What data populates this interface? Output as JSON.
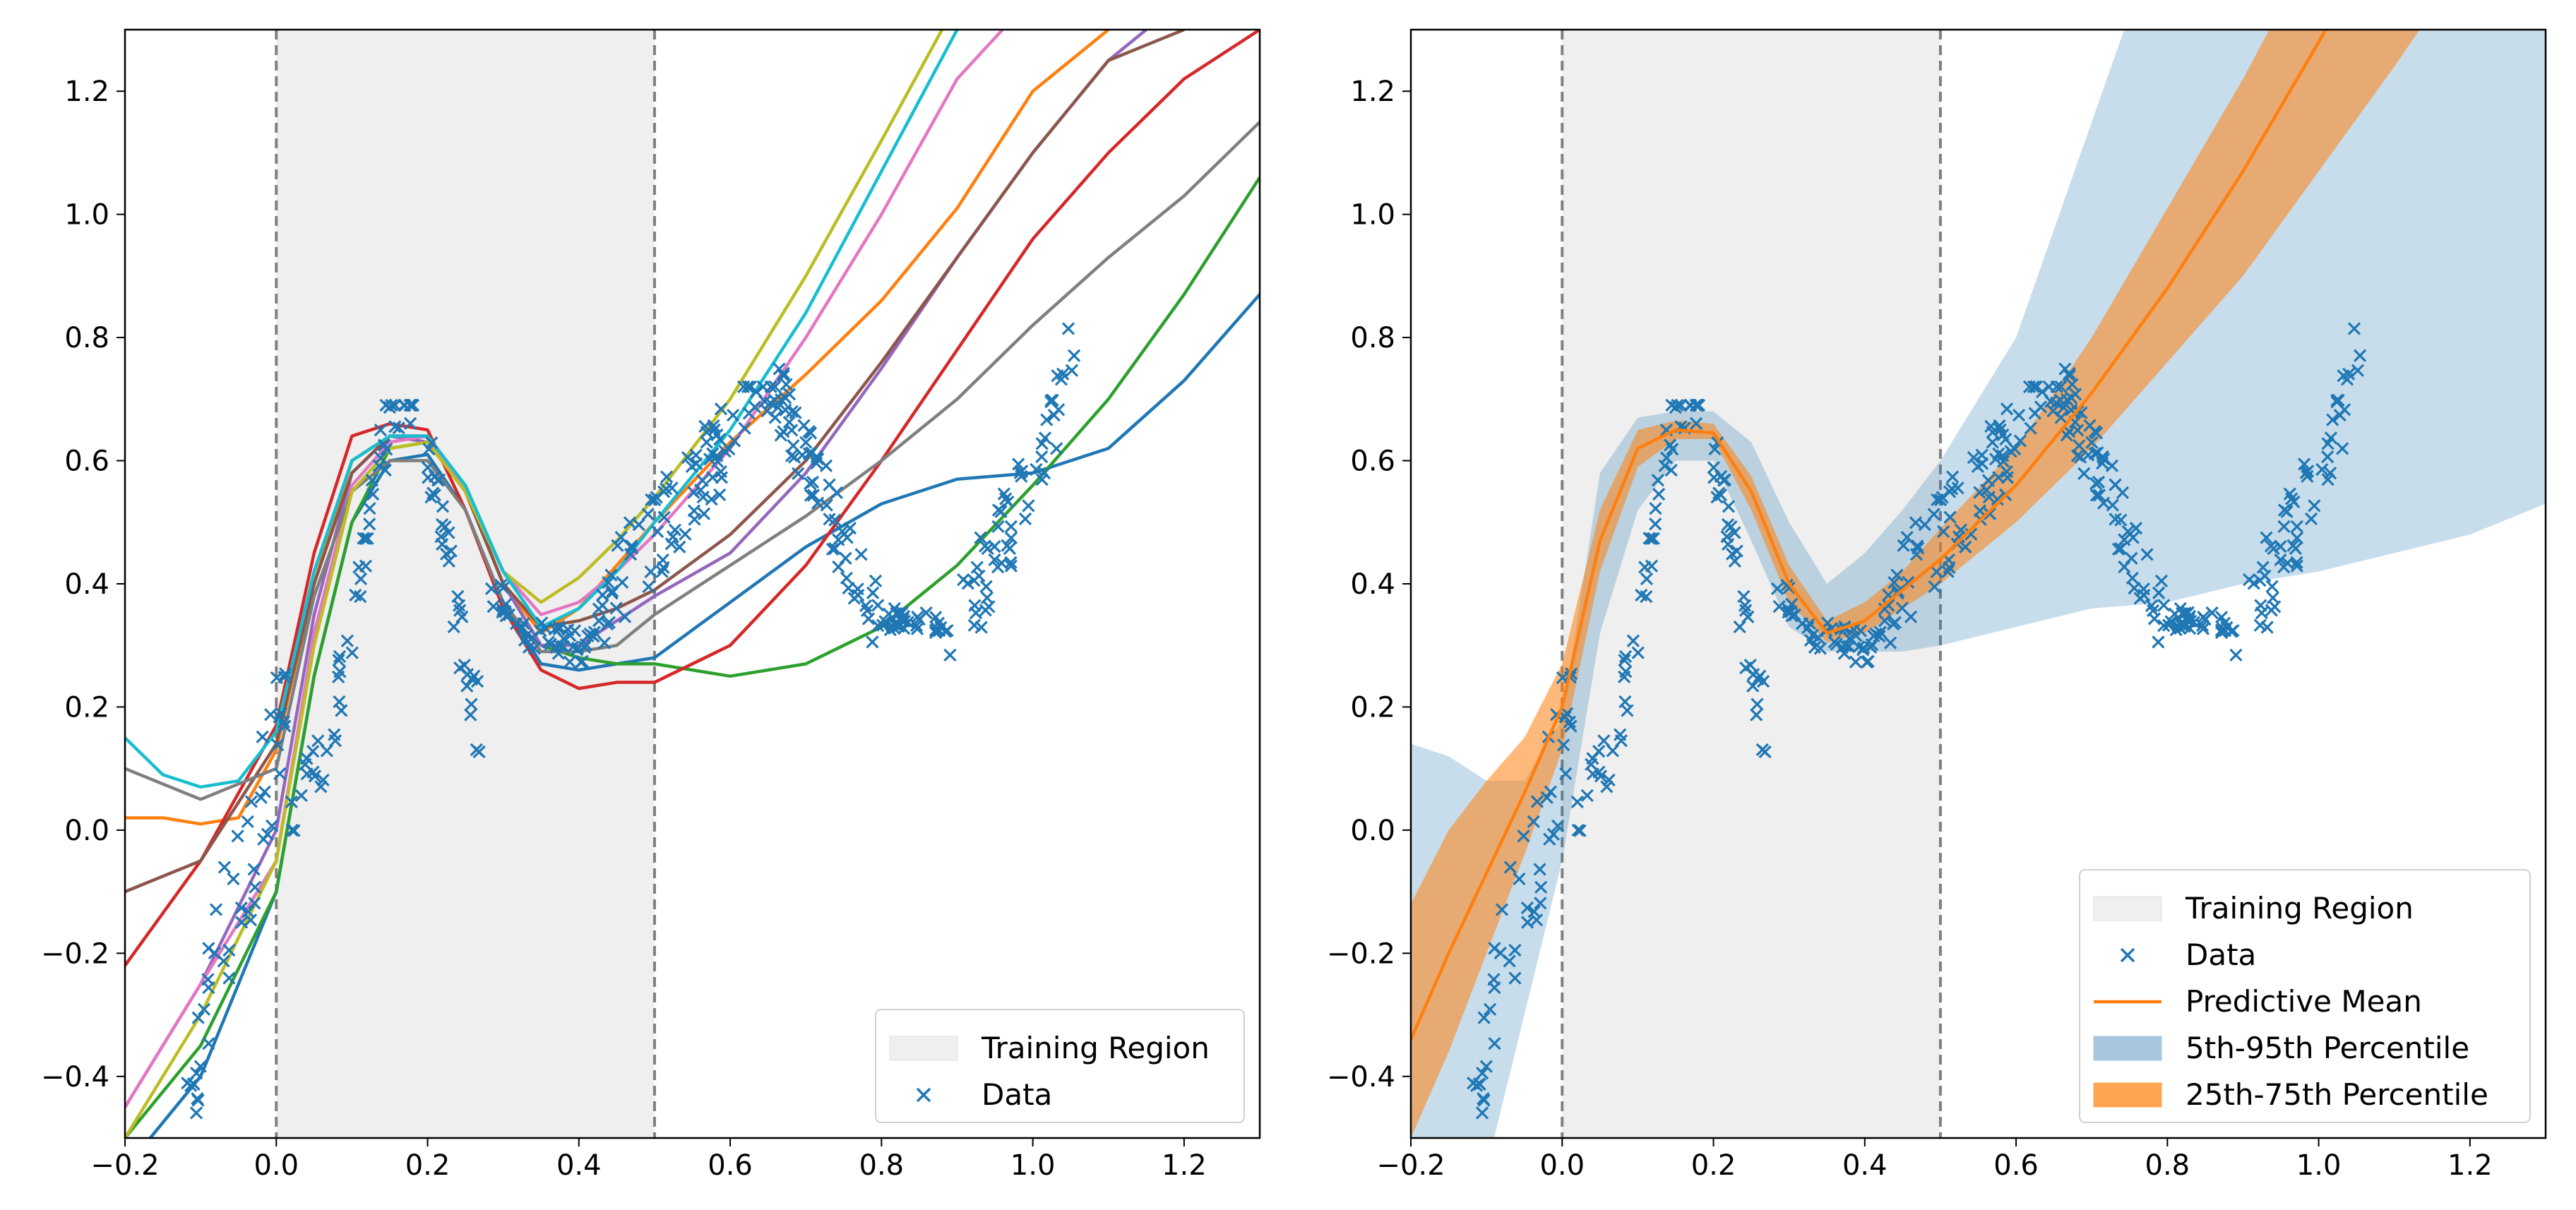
{
  "chart_data": [
    {
      "type": "line",
      "title": "",
      "xlabel": "",
      "ylabel": "",
      "xlim": [
        -0.2,
        1.3
      ],
      "ylim": [
        -0.5,
        1.3
      ],
      "xticks": [
        -0.2,
        0.0,
        0.2,
        0.4,
        0.6,
        0.8,
        1.0,
        1.2
      ],
      "xtick_labels": [
        "−0.2",
        "0.0",
        "0.2",
        "0.4",
        "0.6",
        "0.8",
        "1.0",
        "1.2"
      ],
      "yticks": [
        -0.4,
        -0.2,
        0.0,
        0.2,
        0.4,
        0.6,
        0.8,
        1.0,
        1.2
      ],
      "ytick_labels": [
        "−0.4",
        "−0.2",
        "0.0",
        "0.2",
        "0.4",
        "0.6",
        "0.8",
        "1.0",
        "1.2"
      ],
      "grid": false,
      "training_region": [
        0.0,
        0.5
      ],
      "legend": {
        "position": "lower-right",
        "items": [
          {
            "label": "Training Region",
            "kind": "patch",
            "color": "#efefef"
          },
          {
            "label": "Data",
            "kind": "marker",
            "color": "#1f77b4"
          }
        ]
      },
      "sample_colors": [
        "#1f77b4",
        "#ff7f0e",
        "#2ca02c",
        "#d62728",
        "#9467bd",
        "#8c564b",
        "#e377c2",
        "#7f7f7f",
        "#bcbd22",
        "#17becf"
      ],
      "samples": [
        {
          "x": [
            -0.2,
            -0.1,
            0.0,
            0.05,
            0.1,
            0.15,
            0.2,
            0.25,
            0.3,
            0.35,
            0.4,
            0.45,
            0.5,
            0.6,
            0.7,
            0.8,
            0.9,
            1.0,
            1.1,
            1.2,
            1.3
          ],
          "y": [
            -0.55,
            -0.4,
            -0.1,
            0.25,
            0.5,
            0.6,
            0.61,
            0.52,
            0.37,
            0.27,
            0.26,
            0.27,
            0.28,
            0.37,
            0.46,
            0.53,
            0.57,
            0.58,
            0.62,
            0.73,
            0.87
          ]
        },
        {
          "x": [
            -0.2,
            -0.15,
            -0.1,
            -0.05,
            0.0,
            0.05,
            0.1,
            0.15,
            0.2,
            0.25,
            0.3,
            0.35,
            0.4,
            0.45,
            0.5,
            0.6,
            0.7,
            0.8,
            0.9,
            1.0,
            1.1
          ],
          "y": [
            0.02,
            0.02,
            0.01,
            0.02,
            0.13,
            0.4,
            0.6,
            0.64,
            0.64,
            0.55,
            0.4,
            0.32,
            0.36,
            0.43,
            0.5,
            0.63,
            0.74,
            0.86,
            1.01,
            1.2,
            1.3
          ]
        },
        {
          "x": [
            -0.2,
            -0.1,
            0.0,
            0.05,
            0.1,
            0.15,
            0.2,
            0.25,
            0.3,
            0.35,
            0.4,
            0.45,
            0.5,
            0.6,
            0.7,
            0.8,
            0.9,
            1.0,
            1.1,
            1.2,
            1.3
          ],
          "y": [
            -0.5,
            -0.35,
            -0.1,
            0.25,
            0.5,
            0.62,
            0.63,
            0.55,
            0.4,
            0.3,
            0.28,
            0.27,
            0.27,
            0.25,
            0.27,
            0.33,
            0.43,
            0.56,
            0.7,
            0.87,
            1.06
          ]
        },
        {
          "x": [
            -0.2,
            -0.1,
            0.0,
            0.05,
            0.1,
            0.15,
            0.2,
            0.25,
            0.3,
            0.35,
            0.4,
            0.45,
            0.5,
            0.6,
            0.7,
            0.8,
            0.9,
            1.0,
            1.1,
            1.2,
            1.3
          ],
          "y": [
            -0.22,
            -0.05,
            0.17,
            0.45,
            0.64,
            0.66,
            0.65,
            0.52,
            0.36,
            0.26,
            0.23,
            0.24,
            0.24,
            0.3,
            0.43,
            0.6,
            0.78,
            0.96,
            1.1,
            1.22,
            1.3
          ]
        },
        {
          "x": [
            -0.2,
            -0.1,
            0.0,
            0.05,
            0.1,
            0.15,
            0.2,
            0.25,
            0.3,
            0.35,
            0.4,
            0.45,
            0.5,
            0.6,
            0.7,
            0.8,
            0.9,
            1.0,
            1.1,
            1.15
          ],
          "y": [
            -0.45,
            -0.25,
            0.0,
            0.35,
            0.58,
            0.64,
            0.63,
            0.55,
            0.4,
            0.3,
            0.3,
            0.34,
            0.38,
            0.45,
            0.58,
            0.75,
            0.93,
            1.1,
            1.25,
            1.3
          ]
        },
        {
          "x": [
            -0.2,
            -0.1,
            0.0,
            0.05,
            0.1,
            0.15,
            0.2,
            0.25,
            0.3,
            0.35,
            0.4,
            0.45,
            0.5,
            0.6,
            0.7,
            0.8,
            0.9,
            1.0,
            1.1,
            1.2
          ],
          "y": [
            -0.1,
            -0.05,
            0.14,
            0.4,
            0.58,
            0.64,
            0.64,
            0.55,
            0.4,
            0.33,
            0.34,
            0.36,
            0.39,
            0.48,
            0.6,
            0.76,
            0.93,
            1.1,
            1.25,
            1.3
          ]
        },
        {
          "x": [
            -0.2,
            -0.1,
            0.0,
            0.05,
            0.1,
            0.15,
            0.2,
            0.25,
            0.3,
            0.35,
            0.4,
            0.45,
            0.5,
            0.6,
            0.7,
            0.8,
            0.9,
            0.96
          ],
          "y": [
            -0.45,
            -0.25,
            -0.05,
            0.32,
            0.56,
            0.63,
            0.64,
            0.55,
            0.42,
            0.35,
            0.37,
            0.42,
            0.48,
            0.62,
            0.8,
            1.0,
            1.22,
            1.3
          ]
        },
        {
          "x": [
            -0.2,
            -0.1,
            0.0,
            0.05,
            0.1,
            0.15,
            0.2,
            0.25,
            0.3,
            0.35,
            0.4,
            0.45,
            0.5,
            0.6,
            0.7,
            0.8,
            0.9,
            1.0,
            1.1,
            1.2,
            1.3
          ],
          "y": [
            0.1,
            0.05,
            0.1,
            0.38,
            0.55,
            0.6,
            0.6,
            0.52,
            0.37,
            0.29,
            0.29,
            0.3,
            0.35,
            0.43,
            0.51,
            0.6,
            0.7,
            0.82,
            0.93,
            1.03,
            1.15
          ]
        },
        {
          "x": [
            -0.2,
            -0.1,
            0.0,
            0.05,
            0.1,
            0.15,
            0.2,
            0.25,
            0.3,
            0.35,
            0.4,
            0.45,
            0.5,
            0.6,
            0.7,
            0.8,
            0.88
          ],
          "y": [
            -0.5,
            -0.3,
            -0.05,
            0.3,
            0.55,
            0.62,
            0.63,
            0.55,
            0.42,
            0.37,
            0.41,
            0.47,
            0.54,
            0.7,
            0.9,
            1.12,
            1.3
          ]
        },
        {
          "x": [
            -0.2,
            -0.15,
            -0.1,
            -0.05,
            0.0,
            0.05,
            0.1,
            0.15,
            0.2,
            0.25,
            0.3,
            0.35,
            0.4,
            0.45,
            0.5,
            0.6,
            0.7,
            0.8,
            0.9
          ],
          "y": [
            0.15,
            0.09,
            0.07,
            0.08,
            0.16,
            0.42,
            0.6,
            0.64,
            0.64,
            0.56,
            0.42,
            0.33,
            0.36,
            0.42,
            0.5,
            0.65,
            0.84,
            1.07,
            1.3
          ]
        }
      ]
    },
    {
      "type": "area",
      "title": "",
      "xlabel": "",
      "ylabel": "",
      "xlim": [
        -0.2,
        1.3
      ],
      "ylim": [
        -0.5,
        1.3
      ],
      "xticks": [
        -0.2,
        0.0,
        0.2,
        0.4,
        0.6,
        0.8,
        1.0,
        1.2
      ],
      "xtick_labels": [
        "−0.2",
        "0.0",
        "0.2",
        "0.4",
        "0.6",
        "0.8",
        "1.0",
        "1.2"
      ],
      "yticks": [
        -0.4,
        -0.2,
        0.0,
        0.2,
        0.4,
        0.6,
        0.8,
        1.0,
        1.2
      ],
      "ytick_labels": [
        "−0.4",
        "−0.2",
        "0.0",
        "0.2",
        "0.4",
        "0.6",
        "0.8",
        "1.0",
        "1.2"
      ],
      "grid": false,
      "training_region": [
        0.0,
        0.5
      ],
      "legend": {
        "position": "lower-right",
        "items": [
          {
            "label": "Training Region",
            "kind": "patch",
            "color": "#efefef"
          },
          {
            "label": "Data",
            "kind": "marker",
            "color": "#1f77b4"
          },
          {
            "label": "Predictive Mean",
            "kind": "line",
            "color": "#ff7f0e"
          },
          {
            "label": "5th-95th Percentile",
            "kind": "patch",
            "color": "#a6c6e0"
          },
          {
            "label": "25th-75th Percentile",
            "kind": "patch",
            "color": "#ffa551"
          }
        ]
      },
      "bands": {
        "x": [
          -0.2,
          -0.15,
          -0.1,
          -0.05,
          0.0,
          0.05,
          0.1,
          0.15,
          0.2,
          0.25,
          0.3,
          0.35,
          0.4,
          0.45,
          0.5,
          0.6,
          0.7,
          0.8,
          0.9,
          1.0,
          1.1,
          1.2,
          1.3
        ],
        "mean": [
          -0.34,
          -0.2,
          -0.07,
          0.06,
          0.2,
          0.47,
          0.62,
          0.65,
          0.645,
          0.55,
          0.4,
          0.32,
          0.34,
          0.39,
          0.44,
          0.56,
          0.71,
          0.88,
          1.07,
          1.28,
          1.5,
          1.73,
          1.98
        ],
        "p25": [
          -0.5,
          -0.36,
          -0.2,
          -0.04,
          0.13,
          0.42,
          0.59,
          0.635,
          0.635,
          0.52,
          0.37,
          0.305,
          0.32,
          0.36,
          0.4,
          0.5,
          0.62,
          0.76,
          0.9,
          1.07,
          1.24,
          1.42,
          1.6
        ],
        "p75": [
          -0.12,
          0.0,
          0.08,
          0.15,
          0.27,
          0.52,
          0.65,
          0.665,
          0.66,
          0.575,
          0.43,
          0.34,
          0.37,
          0.42,
          0.49,
          0.62,
          0.8,
          1.01,
          1.22,
          1.45,
          1.68,
          1.92,
          2.16
        ],
        "p5": [
          -0.55,
          -0.55,
          -0.55,
          -0.3,
          -0.05,
          0.32,
          0.52,
          0.6,
          0.6,
          0.47,
          0.33,
          0.29,
          0.29,
          0.29,
          0.3,
          0.33,
          0.36,
          0.37,
          0.4,
          0.42,
          0.45,
          0.48,
          0.53
        ],
        "p95": [
          0.14,
          0.12,
          0.08,
          0.08,
          0.18,
          0.58,
          0.67,
          0.68,
          0.68,
          0.63,
          0.5,
          0.4,
          0.45,
          0.52,
          0.6,
          0.8,
          1.15,
          1.5,
          1.85,
          2.1,
          2.3,
          2.45,
          2.6
        ]
      }
    }
  ],
  "data_scatter": {
    "color": "#1f77b4",
    "x_range": [
      -0.12,
      1.06
    ],
    "count": 430
  }
}
